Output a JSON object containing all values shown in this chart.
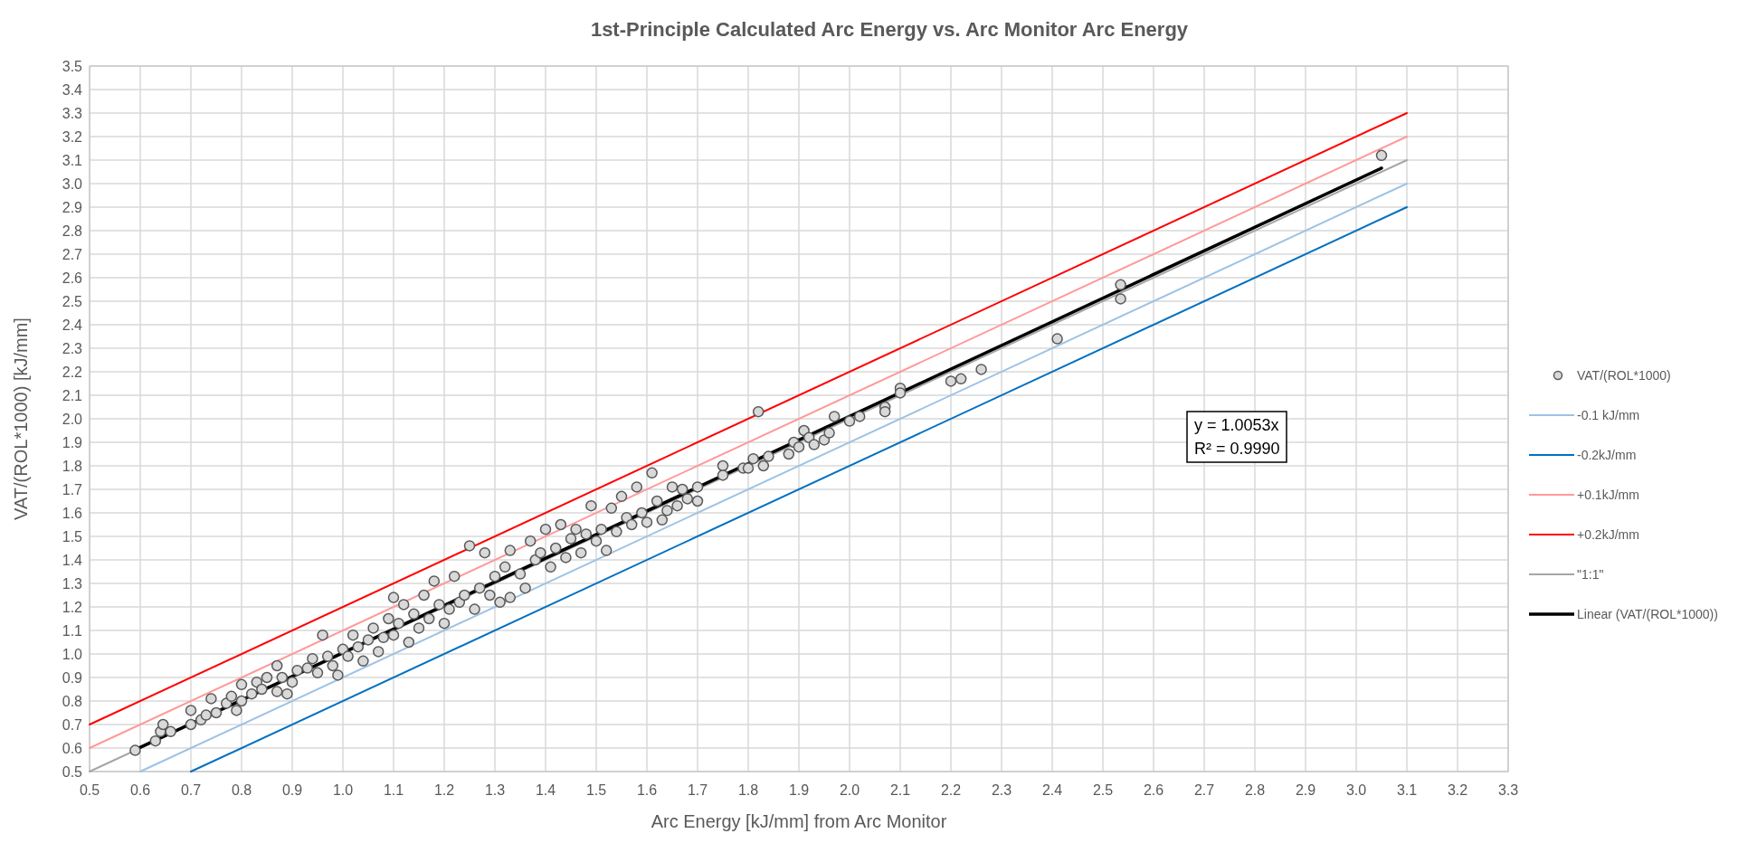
{
  "chart_data": {
    "type": "scatter",
    "title": "1st-Principle Calculated Arc Energy vs. Arc Monitor Arc Energy",
    "xlabel": "Arc Energy [kJ/mm] from Arc Monitor",
    "ylabel": "VAT/(ROL*1000) [kJ/mm]",
    "xlim": [
      0.5,
      3.3
    ],
    "ylim": [
      0.5,
      3.5
    ],
    "xticks": [
      {
        "value": 0.5,
        "label": "0.5"
      },
      {
        "value": 0.6,
        "label": "0.6"
      },
      {
        "value": 0.7,
        "label": "0.7"
      },
      {
        "value": 0.8,
        "label": "0.8"
      },
      {
        "value": 0.9,
        "label": "0.9"
      },
      {
        "value": 1.0,
        "label": "1.0"
      },
      {
        "value": 1.1,
        "label": "1.1"
      },
      {
        "value": 1.2,
        "label": "1.2"
      },
      {
        "value": 1.3,
        "label": "1.3"
      },
      {
        "value": 1.4,
        "label": "1.4"
      },
      {
        "value": 1.5,
        "label": "1.5"
      },
      {
        "value": 1.6,
        "label": "1.6"
      },
      {
        "value": 1.7,
        "label": "1.7"
      },
      {
        "value": 1.8,
        "label": "1.8"
      },
      {
        "value": 1.9,
        "label": "1.9"
      },
      {
        "value": 2.0,
        "label": "2.0"
      },
      {
        "value": 2.1,
        "label": "2.1"
      },
      {
        "value": 2.2,
        "label": "2.2"
      },
      {
        "value": 2.3,
        "label": "2.3"
      },
      {
        "value": 2.4,
        "label": "2.4"
      },
      {
        "value": 2.5,
        "label": "2.5"
      },
      {
        "value": 2.6,
        "label": "2.6"
      },
      {
        "value": 2.7,
        "label": "2.7"
      },
      {
        "value": 2.8,
        "label": "2.8"
      },
      {
        "value": 2.9,
        "label": "2.9"
      },
      {
        "value": 3.0,
        "label": "3.0"
      },
      {
        "value": 3.1,
        "label": "3.1"
      },
      {
        "value": 3.2,
        "label": "3.2"
      },
      {
        "value": 3.3,
        "label": "3.3"
      }
    ],
    "yticks": [
      {
        "value": 0.5,
        "label": "0.5"
      },
      {
        "value": 0.6,
        "label": "0.6"
      },
      {
        "value": 0.7,
        "label": "0.7"
      },
      {
        "value": 0.8,
        "label": "0.8"
      },
      {
        "value": 0.9,
        "label": "0.9"
      },
      {
        "value": 1.0,
        "label": "1.0"
      },
      {
        "value": 1.1,
        "label": "1.1"
      },
      {
        "value": 1.2,
        "label": "1.2"
      },
      {
        "value": 1.3,
        "label": "1.3"
      },
      {
        "value": 1.4,
        "label": "1.4"
      },
      {
        "value": 1.5,
        "label": "1.5"
      },
      {
        "value": 1.6,
        "label": "1.6"
      },
      {
        "value": 1.7,
        "label": "1.7"
      },
      {
        "value": 1.8,
        "label": "1.8"
      },
      {
        "value": 1.9,
        "label": "1.9"
      },
      {
        "value": 2.0,
        "label": "2.0"
      },
      {
        "value": 2.1,
        "label": "2.1"
      },
      {
        "value": 2.2,
        "label": "2.2"
      },
      {
        "value": 2.3,
        "label": "2.3"
      },
      {
        "value": 2.4,
        "label": "2.4"
      },
      {
        "value": 2.5,
        "label": "2.5"
      },
      {
        "value": 2.6,
        "label": "2.6"
      },
      {
        "value": 2.7,
        "label": "2.7"
      },
      {
        "value": 2.8,
        "label": "2.8"
      },
      {
        "value": 2.9,
        "label": "2.9"
      },
      {
        "value": 3.0,
        "label": "3.0"
      },
      {
        "value": 3.1,
        "label": "3.1"
      },
      {
        "value": 3.2,
        "label": "3.2"
      },
      {
        "value": 3.3,
        "label": "3.3"
      },
      {
        "value": 3.4,
        "label": "3.4"
      },
      {
        "value": 3.5,
        "label": "3.5"
      }
    ],
    "grid": true,
    "legend": "right",
    "annotations": [
      "y = 1.0053x",
      "R² = 0.9990"
    ],
    "series": [
      {
        "name": "VAT/(ROL*1000)",
        "marker": "circle",
        "color": "#d9d9d9",
        "x": [
          0.59,
          0.63,
          0.64,
          0.645,
          0.66,
          0.7,
          0.7,
          0.72,
          0.73,
          0.74,
          0.75,
          0.77,
          0.78,
          0.79,
          0.8,
          0.8,
          0.82,
          0.83,
          0.84,
          0.85,
          0.87,
          0.87,
          0.88,
          0.89,
          0.9,
          0.91,
          0.93,
          0.94,
          0.95,
          0.96,
          0.97,
          0.98,
          0.99,
          1.0,
          1.01,
          1.02,
          1.03,
          1.04,
          1.05,
          1.06,
          1.07,
          1.08,
          1.09,
          1.1,
          1.1,
          1.11,
          1.12,
          1.13,
          1.14,
          1.15,
          1.16,
          1.17,
          1.18,
          1.19,
          1.2,
          1.21,
          1.22,
          1.23,
          1.24,
          1.25,
          1.26,
          1.27,
          1.28,
          1.29,
          1.3,
          1.31,
          1.32,
          1.33,
          1.33,
          1.35,
          1.36,
          1.37,
          1.38,
          1.39,
          1.4,
          1.41,
          1.42,
          1.43,
          1.44,
          1.45,
          1.46,
          1.47,
          1.48,
          1.49,
          1.5,
          1.51,
          1.52,
          1.53,
          1.54,
          1.55,
          1.56,
          1.57,
          1.58,
          1.59,
          1.6,
          1.61,
          1.62,
          1.63,
          1.64,
          1.65,
          1.66,
          1.67,
          1.68,
          1.7,
          1.7,
          1.75,
          1.75,
          1.79,
          1.8,
          1.81,
          1.82,
          1.83,
          1.84,
          1.88,
          1.89,
          1.9,
          1.91,
          1.92,
          1.93,
          1.95,
          1.96,
          1.97,
          2.0,
          2.02,
          2.07,
          2.07,
          2.1,
          2.1,
          2.2,
          2.22,
          2.26,
          2.41,
          2.535,
          2.535,
          3.05
        ],
        "values": [
          0.59,
          0.63,
          0.67,
          0.7,
          0.67,
          0.76,
          0.7,
          0.72,
          0.74,
          0.81,
          0.75,
          0.79,
          0.82,
          0.76,
          0.8,
          0.87,
          0.83,
          0.88,
          0.85,
          0.9,
          0.95,
          0.84,
          0.9,
          0.83,
          0.88,
          0.93,
          0.94,
          0.98,
          0.92,
          1.08,
          0.99,
          0.95,
          0.91,
          1.02,
          0.99,
          1.08,
          1.03,
          0.97,
          1.06,
          1.11,
          1.01,
          1.07,
          1.15,
          1.24,
          1.08,
          1.13,
          1.21,
          1.05,
          1.17,
          1.11,
          1.25,
          1.15,
          1.31,
          1.21,
          1.13,
          1.19,
          1.33,
          1.22,
          1.25,
          1.46,
          1.19,
          1.28,
          1.43,
          1.25,
          1.33,
          1.22,
          1.37,
          1.44,
          1.24,
          1.34,
          1.28,
          1.48,
          1.4,
          1.43,
          1.53,
          1.37,
          1.45,
          1.55,
          1.41,
          1.49,
          1.53,
          1.43,
          1.51,
          1.63,
          1.48,
          1.53,
          1.44,
          1.62,
          1.52,
          1.67,
          1.58,
          1.55,
          1.71,
          1.6,
          1.56,
          1.77,
          1.65,
          1.57,
          1.61,
          1.71,
          1.63,
          1.7,
          1.66,
          1.71,
          1.65,
          1.8,
          1.76,
          1.79,
          1.79,
          1.83,
          2.03,
          1.8,
          1.84,
          1.85,
          1.9,
          1.88,
          1.95,
          1.92,
          1.89,
          1.91,
          1.94,
          2.01,
          1.99,
          2.01,
          2.05,
          2.03,
          2.13,
          2.11,
          2.16,
          2.17,
          2.21,
          2.34,
          2.57,
          2.51,
          3.12
        ]
      },
      {
        "name": "-0.1 kJ/mm",
        "type": "line",
        "marker": "none",
        "color": "#9dc3e6",
        "x": [
          0.6,
          3.1
        ],
        "values": [
          0.5,
          3.0
        ]
      },
      {
        "name": "-0.2kJ/mm",
        "type": "line",
        "marker": "none",
        "color": "#0070c0",
        "x": [
          0.7,
          3.1
        ],
        "values": [
          0.5,
          2.9
        ]
      },
      {
        "name": "+0.1kJ/mm",
        "type": "line",
        "marker": "none",
        "color": "#ff9999",
        "x": [
          0.5,
          3.1
        ],
        "values": [
          0.6,
          3.2
        ]
      },
      {
        "name": "+0.2kJ/mm",
        "type": "line",
        "marker": "none",
        "color": "#ff0000",
        "x": [
          0.5,
          3.1
        ],
        "values": [
          0.7,
          3.3
        ]
      },
      {
        "name": "\"1:1\"",
        "type": "line",
        "marker": "none",
        "color": "#a6a6a6",
        "x": [
          0.5,
          3.1
        ],
        "values": [
          0.5,
          3.1
        ]
      },
      {
        "name": "Linear (VAT/(ROL*1000))",
        "type": "line",
        "marker": "none",
        "color": "#000000",
        "x": [
          0.59,
          3.05
        ],
        "values": [
          0.593,
          3.066
        ]
      }
    ]
  }
}
